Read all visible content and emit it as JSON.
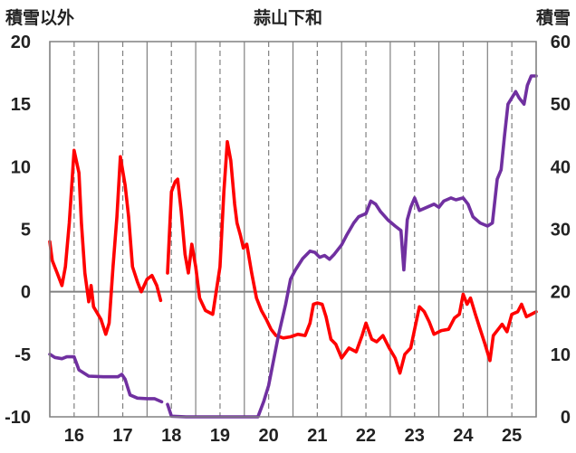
{
  "chart_data": {
    "type": "line",
    "title": "蒜山下和",
    "left_axis_label": "積雪以外",
    "right_axis_label": "積雪",
    "left_ylim": [
      -10,
      20
    ],
    "left_yticks": [
      "20",
      "15",
      "10",
      "5",
      "0",
      "-5",
      "-10"
    ],
    "right_ylim": [
      0,
      60
    ],
    "right_yticks": [
      "60",
      "50",
      "40",
      "30",
      "20",
      "10",
      "0"
    ],
    "x_ticks": [
      {
        "label": "16",
        "x": 16
      },
      {
        "label": "17",
        "x": 17
      },
      {
        "label": "18",
        "x": 18
      },
      {
        "label": "19",
        "x": 19
      },
      {
        "label": "20",
        "x": 20
      },
      {
        "label": "21",
        "x": 21
      },
      {
        "label": "22",
        "x": 22
      },
      {
        "label": "23",
        "x": 23
      },
      {
        "label": "24",
        "x": 24
      },
      {
        "label": "25",
        "x": 25
      }
    ],
    "xlim": [
      15.5,
      25.5
    ],
    "grid": {
      "vertical_major_solid": true,
      "vertical_minor_dashed": true,
      "horizontal_zero_line": true
    },
    "colors": {
      "red_series": "#ff0000",
      "purple_series": "#7030a0",
      "axis": "#808080",
      "grid": "#808080"
    },
    "series": [
      {
        "axis": "left",
        "color": "#ff0000",
        "segments": [
          [
            [
              15.5,
              4
            ],
            [
              15.55,
              2.5
            ],
            [
              15.65,
              1.5
            ],
            [
              15.75,
              0.5
            ],
            [
              15.82,
              2
            ],
            [
              15.9,
              5.5
            ],
            [
              16.0,
              11.3
            ],
            [
              16.1,
              9.5
            ],
            [
              16.15,
              5.5
            ],
            [
              16.22,
              1.5
            ],
            [
              16.3,
              -0.8
            ],
            [
              16.35,
              0.5
            ],
            [
              16.4,
              -1.2
            ],
            [
              16.55,
              -2.2
            ],
            [
              16.65,
              -3.4
            ],
            [
              16.72,
              -2.5
            ],
            [
              16.8,
              2
            ],
            [
              16.88,
              6
            ],
            [
              16.95,
              10.8
            ],
            [
              17.05,
              8.5
            ],
            [
              17.12,
              6
            ],
            [
              17.2,
              2
            ],
            [
              17.3,
              0.8
            ],
            [
              17.38,
              0
            ],
            [
              17.5,
              1
            ],
            [
              17.6,
              1.3
            ],
            [
              17.7,
              0.5
            ],
            [
              17.78,
              -0.7
            ]
          ],
          [
            [
              17.92,
              1.5
            ],
            [
              18.0,
              8
            ],
            [
              18.08,
              8.8
            ],
            [
              18.13,
              9
            ],
            [
              18.2,
              6.5
            ],
            [
              18.28,
              3
            ],
            [
              18.35,
              1.5
            ],
            [
              18.42,
              3.8
            ],
            [
              18.5,
              2
            ],
            [
              18.58,
              -0.5
            ],
            [
              18.7,
              -1.5
            ],
            [
              18.85,
              -1.8
            ],
            [
              19.0,
              2
            ],
            [
              19.08,
              8
            ],
            [
              19.15,
              12
            ],
            [
              19.22,
              10.5
            ],
            [
              19.3,
              7
            ],
            [
              19.35,
              5.5
            ],
            [
              19.42,
              4.5
            ],
            [
              19.48,
              3.5
            ],
            [
              19.55,
              3.8
            ],
            [
              19.65,
              1.5
            ],
            [
              19.75,
              -0.5
            ],
            [
              19.85,
              -1.5
            ],
            [
              19.95,
              -2.2
            ],
            [
              20.05,
              -3
            ],
            [
              20.15,
              -3.5
            ],
            [
              20.3,
              -3.7
            ],
            [
              20.45,
              -3.6
            ],
            [
              20.6,
              -3.4
            ],
            [
              20.75,
              -3.5
            ],
            [
              20.85,
              -2.5
            ],
            [
              20.92,
              -1
            ],
            [
              21.0,
              -0.9
            ],
            [
              21.1,
              -1
            ],
            [
              21.18,
              -2
            ],
            [
              21.28,
              -3.8
            ],
            [
              21.38,
              -4.2
            ],
            [
              21.5,
              -5.3
            ],
            [
              21.65,
              -4.5
            ],
            [
              21.8,
              -4.8
            ],
            [
              21.92,
              -3.5
            ],
            [
              22.0,
              -2.5
            ],
            [
              22.12,
              -3.8
            ],
            [
              22.22,
              -4
            ],
            [
              22.35,
              -3.5
            ],
            [
              22.48,
              -4.5
            ],
            [
              22.6,
              -5.3
            ],
            [
              22.7,
              -6.5
            ],
            [
              22.8,
              -5
            ],
            [
              22.92,
              -4.5
            ],
            [
              23.0,
              -3
            ],
            [
              23.1,
              -1.2
            ],
            [
              23.2,
              -1.6
            ],
            [
              23.3,
              -2.4
            ],
            [
              23.4,
              -3.4
            ],
            [
              23.55,
              -3.1
            ],
            [
              23.7,
              -3
            ],
            [
              23.82,
              -2.1
            ],
            [
              23.92,
              -1.8
            ],
            [
              24.0,
              -0.2
            ],
            [
              24.08,
              -1
            ],
            [
              24.15,
              -0.5
            ],
            [
              24.25,
              -1.8
            ],
            [
              24.35,
              -3
            ],
            [
              24.45,
              -4.2
            ],
            [
              24.55,
              -5.5
            ],
            [
              24.62,
              -3.5
            ],
            [
              24.72,
              -3
            ],
            [
              24.8,
              -2.6
            ],
            [
              24.9,
              -3.2
            ],
            [
              25.0,
              -1.8
            ],
            [
              25.12,
              -1.6
            ],
            [
              25.2,
              -1
            ],
            [
              25.3,
              -2
            ],
            [
              25.4,
              -1.8
            ],
            [
              25.5,
              -1.6
            ]
          ]
        ]
      },
      {
        "axis": "right",
        "color": "#7030a0",
        "segments": [
          [
            [
              15.5,
              10
            ],
            [
              15.6,
              9.5
            ],
            [
              15.75,
              9.3
            ],
            [
              15.85,
              9.6
            ],
            [
              16.0,
              9.6
            ],
            [
              16.1,
              7.5
            ],
            [
              16.3,
              6.5
            ],
            [
              16.6,
              6.4
            ],
            [
              16.9,
              6.4
            ],
            [
              16.98,
              6.8
            ],
            [
              17.05,
              6
            ],
            [
              17.15,
              3.5
            ],
            [
              17.3,
              3
            ],
            [
              17.5,
              2.9
            ],
            [
              17.65,
              2.9
            ],
            [
              17.8,
              2.4
            ]
          ],
          [
            [
              17.92,
              2
            ],
            [
              18.0,
              0.1
            ],
            [
              18.3,
              0
            ],
            [
              19.0,
              0
            ],
            [
              19.5,
              0
            ],
            [
              19.78,
              0
            ],
            [
              19.9,
              2.5
            ],
            [
              20.0,
              5
            ],
            [
              20.1,
              9
            ],
            [
              20.2,
              13
            ],
            [
              20.35,
              18
            ],
            [
              20.45,
              22
            ],
            [
              20.55,
              23.5
            ],
            [
              20.7,
              25.3
            ],
            [
              20.85,
              26.5
            ],
            [
              20.95,
              26.3
            ],
            [
              21.05,
              25.5
            ],
            [
              21.15,
              25.8
            ],
            [
              21.25,
              25.2
            ],
            [
              21.35,
              26
            ],
            [
              21.5,
              27.5
            ],
            [
              21.6,
              29
            ],
            [
              21.75,
              31
            ],
            [
              21.85,
              32
            ],
            [
              22.0,
              32.5
            ],
            [
              22.1,
              34.5
            ],
            [
              22.2,
              34
            ],
            [
              22.3,
              32.8
            ],
            [
              22.45,
              31.5
            ],
            [
              22.6,
              30.5
            ],
            [
              22.72,
              29.8
            ],
            [
              22.78,
              23.5
            ],
            [
              22.85,
              31.5
            ],
            [
              22.92,
              33.5
            ],
            [
              23.0,
              35
            ],
            [
              23.1,
              33
            ],
            [
              23.25,
              33.5
            ],
            [
              23.4,
              34
            ],
            [
              23.5,
              33.5
            ],
            [
              23.6,
              34.5
            ],
            [
              23.75,
              35
            ],
            [
              23.85,
              34.7
            ],
            [
              24.0,
              35
            ],
            [
              24.1,
              34
            ],
            [
              24.2,
              32
            ],
            [
              24.35,
              31
            ],
            [
              24.5,
              30.5
            ],
            [
              24.6,
              31
            ],
            [
              24.7,
              38
            ],
            [
              24.78,
              39.5
            ],
            [
              24.85,
              45
            ],
            [
              24.92,
              50
            ],
            [
              25.0,
              51
            ],
            [
              25.08,
              52
            ],
            [
              25.15,
              51
            ],
            [
              25.25,
              50
            ],
            [
              25.32,
              53
            ],
            [
              25.4,
              54.5
            ],
            [
              25.5,
              54.5
            ]
          ]
        ]
      }
    ]
  }
}
